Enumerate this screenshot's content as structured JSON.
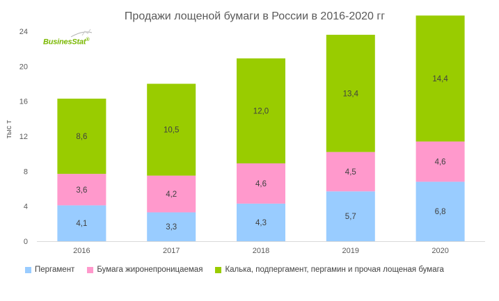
{
  "logo": {
    "text": "BusinesStat",
    "mark": "®"
  },
  "chart_data": {
    "type": "bar",
    "stacked": true,
    "title": "Продажи лощеной бумаги в России в 2016-2020 гг",
    "ylabel": "тыс т",
    "xlabel": "",
    "ylim": [
      0,
      24
    ],
    "yticks": [
      0,
      4,
      8,
      12,
      16,
      20,
      24
    ],
    "categories": [
      "2016",
      "2017",
      "2018",
      "2019",
      "2020"
    ],
    "series": [
      {
        "name": "Пергамент",
        "color": "#99ccff",
        "values": [
          4.1,
          3.3,
          4.3,
          5.7,
          6.8
        ],
        "labels": [
          "4,1",
          "3,3",
          "4,3",
          "5,7",
          "6,8"
        ]
      },
      {
        "name": "Бумага жиронепроницаемая",
        "color": "#ff99cc",
        "values": [
          3.6,
          4.2,
          4.6,
          4.5,
          4.6
        ],
        "labels": [
          "3,6",
          "4,2",
          "4,6",
          "4,5",
          "4,6"
        ]
      },
      {
        "name": "Калька, подпергамент, пергамин и прочая лощеная бумага",
        "color": "#99cc00",
        "values": [
          8.6,
          10.5,
          12.0,
          13.4,
          14.4
        ],
        "labels": [
          "8,6",
          "10,5",
          "12,0",
          "13,4",
          "14,4"
        ]
      }
    ],
    "legend_position": "bottom",
    "grid": false
  }
}
